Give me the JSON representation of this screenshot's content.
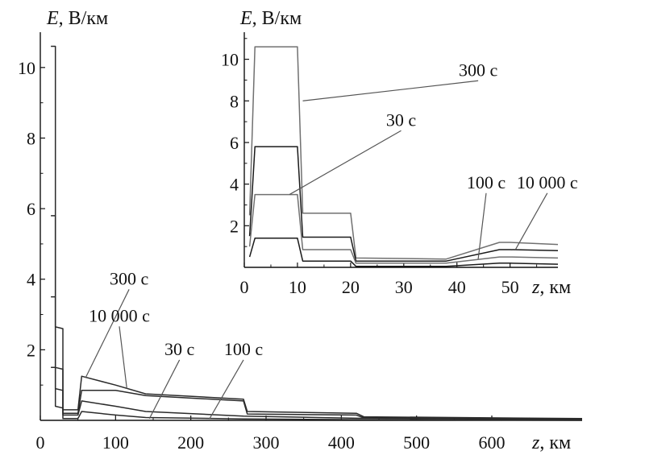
{
  "chart_data": [
    {
      "type": "line",
      "xlabel_var": "z",
      "xlabel_unit": ", км",
      "ylabel_var": "E",
      "ylabel_unit": ", В/км",
      "xlim": [
        0,
        720
      ],
      "ylim": [
        0,
        11
      ],
      "x_ticks": [
        0,
        100,
        200,
        300,
        400,
        500,
        600
      ],
      "y_ticks": [
        2,
        4,
        6,
        8,
        10
      ],
      "series": [
        {
          "name": "300 с",
          "color": "#2a2a2a",
          "points": [
            [
              14,
              10.6
            ],
            [
              20,
              10.6
            ],
            [
              20,
              2.65
            ],
            [
              30,
              2.6
            ],
            [
              30,
              0.3
            ],
            [
              50,
              0.3
            ],
            [
              55,
              1.25
            ],
            [
              100,
              1.0
            ],
            [
              140,
              0.75
            ],
            [
              270,
              0.6
            ],
            [
              275,
              0.25
            ],
            [
              420,
              0.2
            ],
            [
              430,
              0.1
            ],
            [
              720,
              0.05
            ]
          ]
        },
        {
          "name": "10 000 с",
          "color": "#2a2a2a",
          "points": [
            [
              14,
              5.8
            ],
            [
              20,
              5.8
            ],
            [
              20,
              1.5
            ],
            [
              30,
              1.45
            ],
            [
              30,
              0.2
            ],
            [
              50,
              0.2
            ],
            [
              55,
              0.85
            ],
            [
              100,
              0.85
            ],
            [
              140,
              0.7
            ],
            [
              270,
              0.55
            ],
            [
              275,
              0.18
            ],
            [
              420,
              0.15
            ],
            [
              430,
              0.07
            ],
            [
              720,
              0.04
            ]
          ]
        },
        {
          "name": "30 с",
          "color": "#2a2a2a",
          "points": [
            [
              14,
              3.5
            ],
            [
              20,
              3.5
            ],
            [
              20,
              0.9
            ],
            [
              30,
              0.85
            ],
            [
              30,
              0.15
            ],
            [
              50,
              0.15
            ],
            [
              55,
              0.55
            ],
            [
              100,
              0.4
            ],
            [
              140,
              0.25
            ],
            [
              270,
              0.12
            ],
            [
              420,
              0.06
            ],
            [
              720,
              0.02
            ]
          ]
        },
        {
          "name": "100 с",
          "color": "#2a2a2a",
          "points": [
            [
              14,
              1.5
            ],
            [
              20,
              1.5
            ],
            [
              20,
              0.4
            ],
            [
              30,
              0.35
            ],
            [
              30,
              0.05
            ],
            [
              50,
              0.05
            ],
            [
              55,
              0.25
            ],
            [
              100,
              0.15
            ],
            [
              140,
              0.08
            ],
            [
              270,
              0.04
            ],
            [
              420,
              0.02
            ],
            [
              720,
              0.0
            ]
          ]
        }
      ],
      "annotations": [
        {
          "text": "300 с",
          "x": 118,
          "y": 3.85,
          "target": [
            60,
            1.2
          ]
        },
        {
          "text": "10 000 с",
          "x": 105,
          "y": 2.8,
          "target": [
            115,
            0.9
          ]
        },
        {
          "text": "30 с",
          "x": 185,
          "y": 1.85,
          "target": [
            145,
            0.05
          ]
        },
        {
          "text": "100 с",
          "x": 270,
          "y": 1.85,
          "target": [
            225,
            0.05
          ]
        }
      ]
    },
    {
      "type": "line",
      "xlabel_var": "z",
      "xlabel_unit": ", км",
      "ylabel_var": "E",
      "ylabel_unit": ", В/км",
      "xlim": [
        0,
        59
      ],
      "ylim": [
        0,
        11.3
      ],
      "x_ticks": [
        0,
        10,
        20,
        30,
        40,
        50
      ],
      "y_ticks": [
        2,
        4,
        6,
        8,
        10
      ],
      "series": [
        {
          "name": "300 с",
          "color": "#707070",
          "points": [
            [
              1,
              2.5
            ],
            [
              2,
              10.6
            ],
            [
              10,
              10.6
            ],
            [
              11,
              2.6
            ],
            [
              20,
              2.6
            ],
            [
              21,
              0.45
            ],
            [
              38,
              0.4
            ],
            [
              48,
              1.2
            ],
            [
              50,
              1.2
            ],
            [
              59,
              1.1
            ]
          ]
        },
        {
          "name": "10 000 с",
          "color": "#1a1a1a",
          "points": [
            [
              1,
              1.5
            ],
            [
              2,
              5.8
            ],
            [
              10,
              5.8
            ],
            [
              11,
              1.45
            ],
            [
              20,
              1.45
            ],
            [
              21,
              0.3
            ],
            [
              38,
              0.3
            ],
            [
              48,
              0.85
            ],
            [
              50,
              0.85
            ],
            [
              59,
              0.8
            ]
          ]
        },
        {
          "name": "30 с",
          "color": "#707070",
          "points": [
            [
              1,
              1.0
            ],
            [
              2,
              3.5
            ],
            [
              10,
              3.5
            ],
            [
              11,
              0.85
            ],
            [
              20,
              0.85
            ],
            [
              21,
              0.2
            ],
            [
              38,
              0.2
            ],
            [
              48,
              0.5
            ],
            [
              50,
              0.5
            ],
            [
              59,
              0.45
            ]
          ]
        },
        {
          "name": "100 с",
          "color": "#1a1a1a",
          "points": [
            [
              1,
              0.5
            ],
            [
              2,
              1.4
            ],
            [
              10,
              1.4
            ],
            [
              11,
              0.3
            ],
            [
              20,
              0.3
            ],
            [
              21,
              0.05
            ],
            [
              38,
              0.05
            ],
            [
              48,
              0.2
            ],
            [
              50,
              0.2
            ],
            [
              59,
              0.15
            ]
          ]
        }
      ],
      "annotations": [
        {
          "text": "300 с",
          "x": 44,
          "y": 9.2,
          "target": [
            11,
            8.0
          ]
        },
        {
          "text": "30 с",
          "x": 29.5,
          "y": 6.8,
          "target": [
            8.5,
            3.5
          ]
        },
        {
          "text": "100 с",
          "x": 45.5,
          "y": 3.8,
          "target": [
            44,
            0.4
          ]
        },
        {
          "text": "10 000 с",
          "x": 57,
          "y": 3.8,
          "target": [
            51,
            0.85
          ]
        }
      ]
    }
  ]
}
